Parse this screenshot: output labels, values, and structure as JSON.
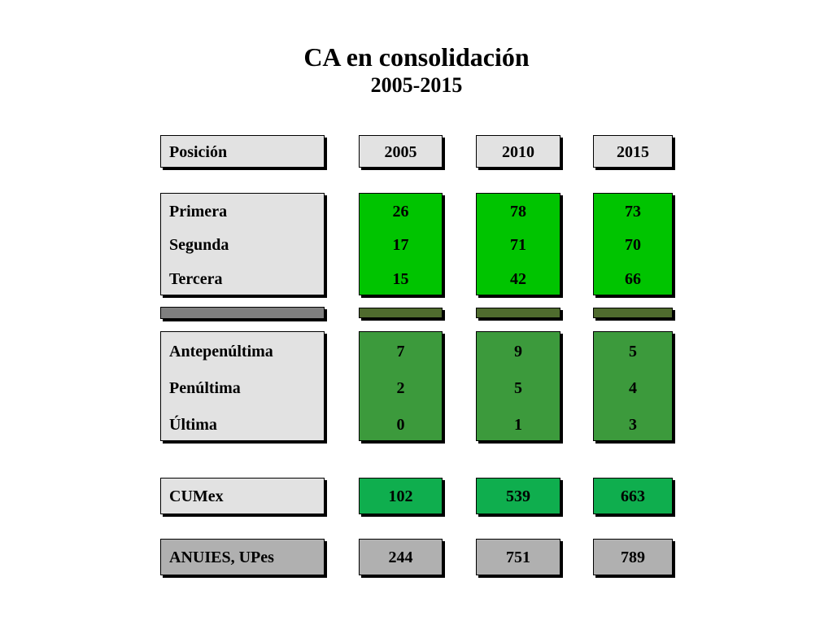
{
  "title": "CA en consolidación",
  "subtitle": "2005-2015",
  "header": {
    "label": "Posición",
    "years": [
      "2005",
      "2010",
      "2015"
    ]
  },
  "top_rows": [
    {
      "label": "Primera",
      "values": [
        "26",
        "78",
        "73"
      ]
    },
    {
      "label": "Segunda",
      "values": [
        "17",
        "71",
        "70"
      ]
    },
    {
      "label": "Tercera",
      "values": [
        "15",
        "42",
        "66"
      ]
    }
  ],
  "bottom_rows": [
    {
      "label": "Antepenúltima",
      "values": [
        "7",
        "9",
        "5"
      ]
    },
    {
      "label": "Penúltima",
      "values": [
        "2",
        "5",
        "4"
      ]
    },
    {
      "label": "Última",
      "values": [
        "0",
        "1",
        "3"
      ]
    }
  ],
  "cumex": {
    "label": "CUMex",
    "values": [
      "102",
      "539",
      "663"
    ]
  },
  "anuies": {
    "label": "ANUIES, UPes",
    "values": [
      "244",
      "751",
      "789"
    ]
  },
  "colors": {
    "label_bg": "#e2e2e2",
    "top_green": "#00c400",
    "bottom_green": "#3c9a3c",
    "cumex_green": "#0fae4e",
    "separator_olive": "#4f6b2e",
    "anuies_gray": "#b0b0b0"
  }
}
